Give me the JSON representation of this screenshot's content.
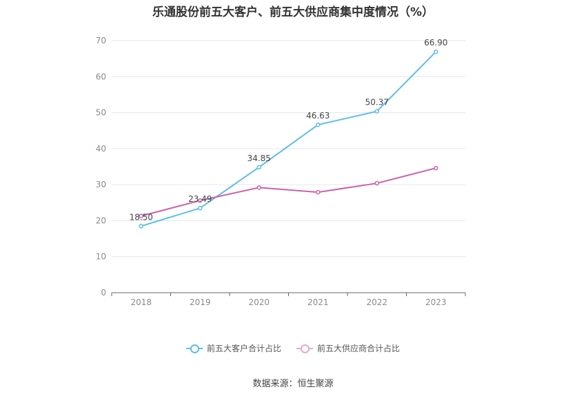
{
  "chart_data": {
    "type": "line",
    "title": "乐通股份前五大客户、前五大供应商集中度情况（%）",
    "categories": [
      "2018",
      "2019",
      "2020",
      "2021",
      "2022",
      "2023"
    ],
    "ylim": [
      0,
      70
    ],
    "yticks": [
      0,
      10,
      20,
      30,
      40,
      50,
      60,
      70
    ],
    "grid": true,
    "legend_position": "bottom",
    "series": [
      {
        "name": "前五大客户合计占比",
        "color": "#5bbdec",
        "values": [
          18.5,
          23.49,
          34.85,
          46.63,
          50.37,
          66.9
        ],
        "labels": [
          "18.50",
          "23.49",
          "34.85",
          "46.63",
          "50.37",
          "66.90"
        ]
      },
      {
        "name": "前五大供应商合计占比",
        "color": "#cc60a8",
        "values": [
          21.3,
          25.6,
          29.2,
          27.9,
          30.4,
          34.6
        ],
        "labels": []
      }
    ]
  },
  "source": "数据来源：恒生聚源"
}
